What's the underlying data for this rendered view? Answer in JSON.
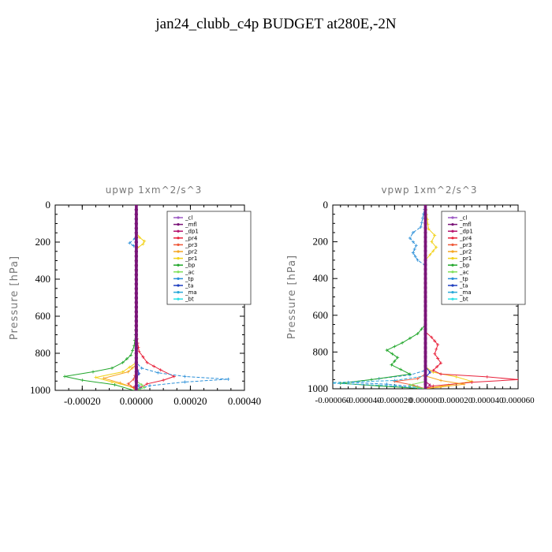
{
  "figure": {
    "title": "jan24_clubb_c4p  BUDGET at280E,-2N"
  },
  "legend_entries": [
    {
      "name": "_cl",
      "color": "#9c59c4"
    },
    {
      "name": "_mfl",
      "color": "#7a1478"
    },
    {
      "name": "_dp1",
      "color": "#b5126e"
    },
    {
      "name": "_pr4",
      "color": "#e8213a"
    },
    {
      "name": "_pr3",
      "color": "#ef5a3a"
    },
    {
      "name": "_pr2",
      "color": "#f5a623"
    },
    {
      "name": "_pr1",
      "color": "#f2d21b"
    },
    {
      "name": "_bp",
      "color": "#22a72c"
    },
    {
      "name": "_ac",
      "color": "#7fe05a"
    },
    {
      "name": "_tp",
      "color": "#2a8fd8"
    },
    {
      "name": "_ta",
      "color": "#1f3fc0"
    },
    {
      "name": "_ma",
      "color": "#2aa8d8"
    },
    {
      "name": "_bt",
      "color": "#2ce0e6"
    }
  ],
  "chart_data": [
    {
      "type": "line",
      "title": "upwp   1xm^2/s^3",
      "ylabel": "Pressure [hPa]",
      "xlabel": "",
      "xlim": [
        -0.0003,
        0.0004
      ],
      "ylim": [
        1000,
        0
      ],
      "xticks": [
        -0.0002,
        0.0,
        0.0002,
        0.0004
      ],
      "xtick_labels": [
        "-0.00020",
        "0.00000",
        "0.00020",
        "0.00040"
      ],
      "yticks": [
        0,
        200,
        400,
        600,
        800,
        1000
      ],
      "ytick_labels": [
        "0",
        "200",
        "400",
        "600",
        "800",
        "1000"
      ],
      "legend_position": "top-right",
      "series": [
        {
          "name": "_bp",
          "color": "#22a72c",
          "x": [
            0,
            0,
            -3e-06,
            -8e-06,
            -2e-05,
            -5e-05,
            -9e-05,
            -0.00016,
            -0.000265,
            -0.0002,
            -8e-05,
            -1e-05
          ],
          "y": [
            0,
            600,
            700,
            760,
            810,
            850,
            880,
            900,
            925,
            945,
            970,
            1000
          ]
        },
        {
          "name": "_pr1",
          "color": "#f2d21b",
          "x": [
            0,
            0,
            1.2e-05,
            3e-05,
            2.5e-05,
            5e-06,
            0,
            0,
            -5e-05,
            -0.00015,
            -9e-05,
            -2e-05,
            0
          ],
          "y": [
            0,
            150,
            175,
            195,
            210,
            230,
            260,
            850,
            900,
            930,
            955,
            980,
            1000
          ]
        },
        {
          "name": "_pr2",
          "color": "#f5a623",
          "x": [
            0,
            0,
            -3e-05,
            -0.00012,
            -6e-05,
            -1e-05,
            0
          ],
          "y": [
            0,
            860,
            900,
            935,
            960,
            985,
            1000
          ]
        },
        {
          "name": "_pr3",
          "color": "#ef5a3a",
          "x": [
            0,
            0,
            -1e-05,
            -3e-05,
            -1e-05,
            0
          ],
          "y": [
            0,
            900,
            940,
            965,
            985,
            1000
          ]
        },
        {
          "name": "_pr4",
          "color": "#e8213a",
          "x": [
            0,
            0,
            1e-05,
            4e-05,
            9e-05,
            0.00014,
            0.0001,
            4e-05,
            1.5e-05,
            0
          ],
          "y": [
            0,
            700,
            790,
            850,
            890,
            925,
            945,
            965,
            985,
            1000
          ]
        },
        {
          "name": "_tp",
          "color": "#2a8fd8",
          "x": [
            0,
            0,
            -5e-06,
            -2.5e-05,
            -1e-05,
            0,
            0,
            2e-05,
            8e-05,
            0.00018,
            0.00034,
            0.00018,
            5e-05,
            1e-05,
            0
          ],
          "y": [
            0,
            160,
            180,
            205,
            220,
            235,
            850,
            880,
            905,
            925,
            940,
            955,
            975,
            990,
            1000
          ]
        },
        {
          "name": "_ta",
          "color": "#1f3fc0",
          "x": [
            0,
            0,
            5e-06,
            1e-05,
            0,
            0
          ],
          "y": [
            0,
            870,
            890,
            910,
            930,
            1000
          ]
        },
        {
          "name": "_ma",
          "color": "#2aa8d8",
          "x": [
            0,
            0,
            1e-05,
            0
          ],
          "y": [
            0,
            950,
            975,
            1000
          ]
        },
        {
          "name": "_ac",
          "color": "#7fe05a",
          "x": [
            0,
            0,
            2e-05,
            3e-05,
            1e-05,
            0
          ],
          "y": [
            0,
            950,
            970,
            985,
            995,
            1000
          ]
        },
        {
          "name": "_cl",
          "color": "#9c59c4",
          "x": [
            0,
            0
          ],
          "y": [
            0,
            1000
          ]
        },
        {
          "name": "_dp1",
          "color": "#b5126e",
          "x": [
            0,
            0,
            -5e-06,
            0
          ],
          "y": [
            0,
            960,
            980,
            1000
          ]
        },
        {
          "name": "_mfl",
          "color": "#7a1478",
          "x": [
            0,
            0
          ],
          "y": [
            0,
            1000
          ]
        }
      ]
    },
    {
      "type": "line",
      "title": "vpwp   1xm^2/s^3",
      "ylabel": "Pressure [hPa]",
      "xlabel": "",
      "xlim": [
        -6e-05,
        6e-05
      ],
      "ylim": [
        1000,
        0
      ],
      "xticks": [
        -6e-05,
        -4e-05,
        -2e-05,
        0.0,
        2e-05,
        4e-05,
        6e-05
      ],
      "xtick_labels": [
        "-0.000060",
        "-0.000040",
        "-0.000020",
        "0.000000",
        "0.000020",
        "0.000040",
        "0.000060"
      ],
      "yticks": [
        0,
        200,
        400,
        600,
        800,
        1000
      ],
      "ytick_labels": [
        "0",
        "200",
        "400",
        "600",
        "800",
        "1000"
      ],
      "legend_position": "top-right",
      "series": [
        {
          "name": "_tp",
          "color": "#2a8fd8",
          "x": [
            0,
            -3e-06,
            -8e-06,
            -1e-05,
            -6e-06,
            -8e-06,
            -5e-06,
            0,
            0,
            -1e-05,
            -3e-05,
            -5e-05,
            -2.5e-05,
            -5e-06,
            0
          ],
          "y": [
            0,
            120,
            150,
            180,
            220,
            260,
            300,
            330,
            900,
            925,
            945,
            965,
            975,
            990,
            1000
          ]
        },
        {
          "name": "_pr1",
          "color": "#f2d21b",
          "x": [
            0,
            2e-06,
            6e-06,
            4e-06,
            7e-06,
            3e-06,
            0,
            0,
            5e-06,
            2e-05,
            3e-05,
            1.5e-05,
            0
          ],
          "y": [
            0,
            130,
            165,
            200,
            230,
            270,
            300,
            880,
            910,
            935,
            960,
            980,
            1000
          ]
        },
        {
          "name": "_bp",
          "color": "#22a72c",
          "x": [
            0,
            0,
            -5e-06,
            -1.5e-05,
            -2.5e-05,
            -1.8e-05,
            -2.2e-05,
            -1e-05,
            -3.5e-05,
            -5.5e-05,
            -3e-05,
            0
          ],
          "y": [
            0,
            650,
            700,
            750,
            790,
            830,
            870,
            920,
            950,
            970,
            985,
            1000
          ]
        },
        {
          "name": "_pr4",
          "color": "#e8213a",
          "x": [
            0,
            0,
            4e-06,
            8e-06,
            6e-06,
            1e-05,
            5e-06,
            1e-05,
            4e-05,
            6e-05,
            3e-05,
            5e-06,
            0
          ],
          "y": [
            0,
            690,
            720,
            760,
            810,
            860,
            900,
            920,
            935,
            950,
            965,
            985,
            1000
          ]
        },
        {
          "name": "_pr3",
          "color": "#ef5a3a",
          "x": [
            0,
            0,
            -5e-06,
            -2e-05,
            -8e-06,
            0
          ],
          "y": [
            0,
            920,
            945,
            960,
            980,
            1000
          ]
        },
        {
          "name": "_pr2",
          "color": "#f5a623",
          "x": [
            0,
            0,
            1e-05,
            2.5e-05,
            1e-05,
            0
          ],
          "y": [
            0,
            930,
            955,
            975,
            990,
            1000
          ]
        },
        {
          "name": "_ma",
          "color": "#2aa8d8",
          "x": [
            0,
            0,
            -2e-05,
            -6.5e-05,
            -2e-05,
            0
          ],
          "y": [
            0,
            930,
            955,
            968,
            985,
            1000
          ]
        },
        {
          "name": "_ta",
          "color": "#1f3fc0",
          "x": [
            0,
            0,
            3e-06,
            0,
            0
          ],
          "y": [
            0,
            880,
            910,
            940,
            1000
          ]
        },
        {
          "name": "_ac",
          "color": "#7fe05a",
          "x": [
            0,
            0,
            -1e-05,
            -5e-06,
            0
          ],
          "y": [
            0,
            960,
            980,
            992,
            1000
          ]
        },
        {
          "name": "_cl",
          "color": "#9c59c4",
          "x": [
            0,
            0
          ],
          "y": [
            0,
            1000
          ]
        },
        {
          "name": "_dp1",
          "color": "#b5126e",
          "x": [
            0,
            0,
            3e-06,
            0
          ],
          "y": [
            0,
            960,
            980,
            1000
          ]
        },
        {
          "name": "_mfl",
          "color": "#7a1478",
          "x": [
            0,
            0
          ],
          "y": [
            0,
            1000
          ]
        }
      ]
    }
  ]
}
